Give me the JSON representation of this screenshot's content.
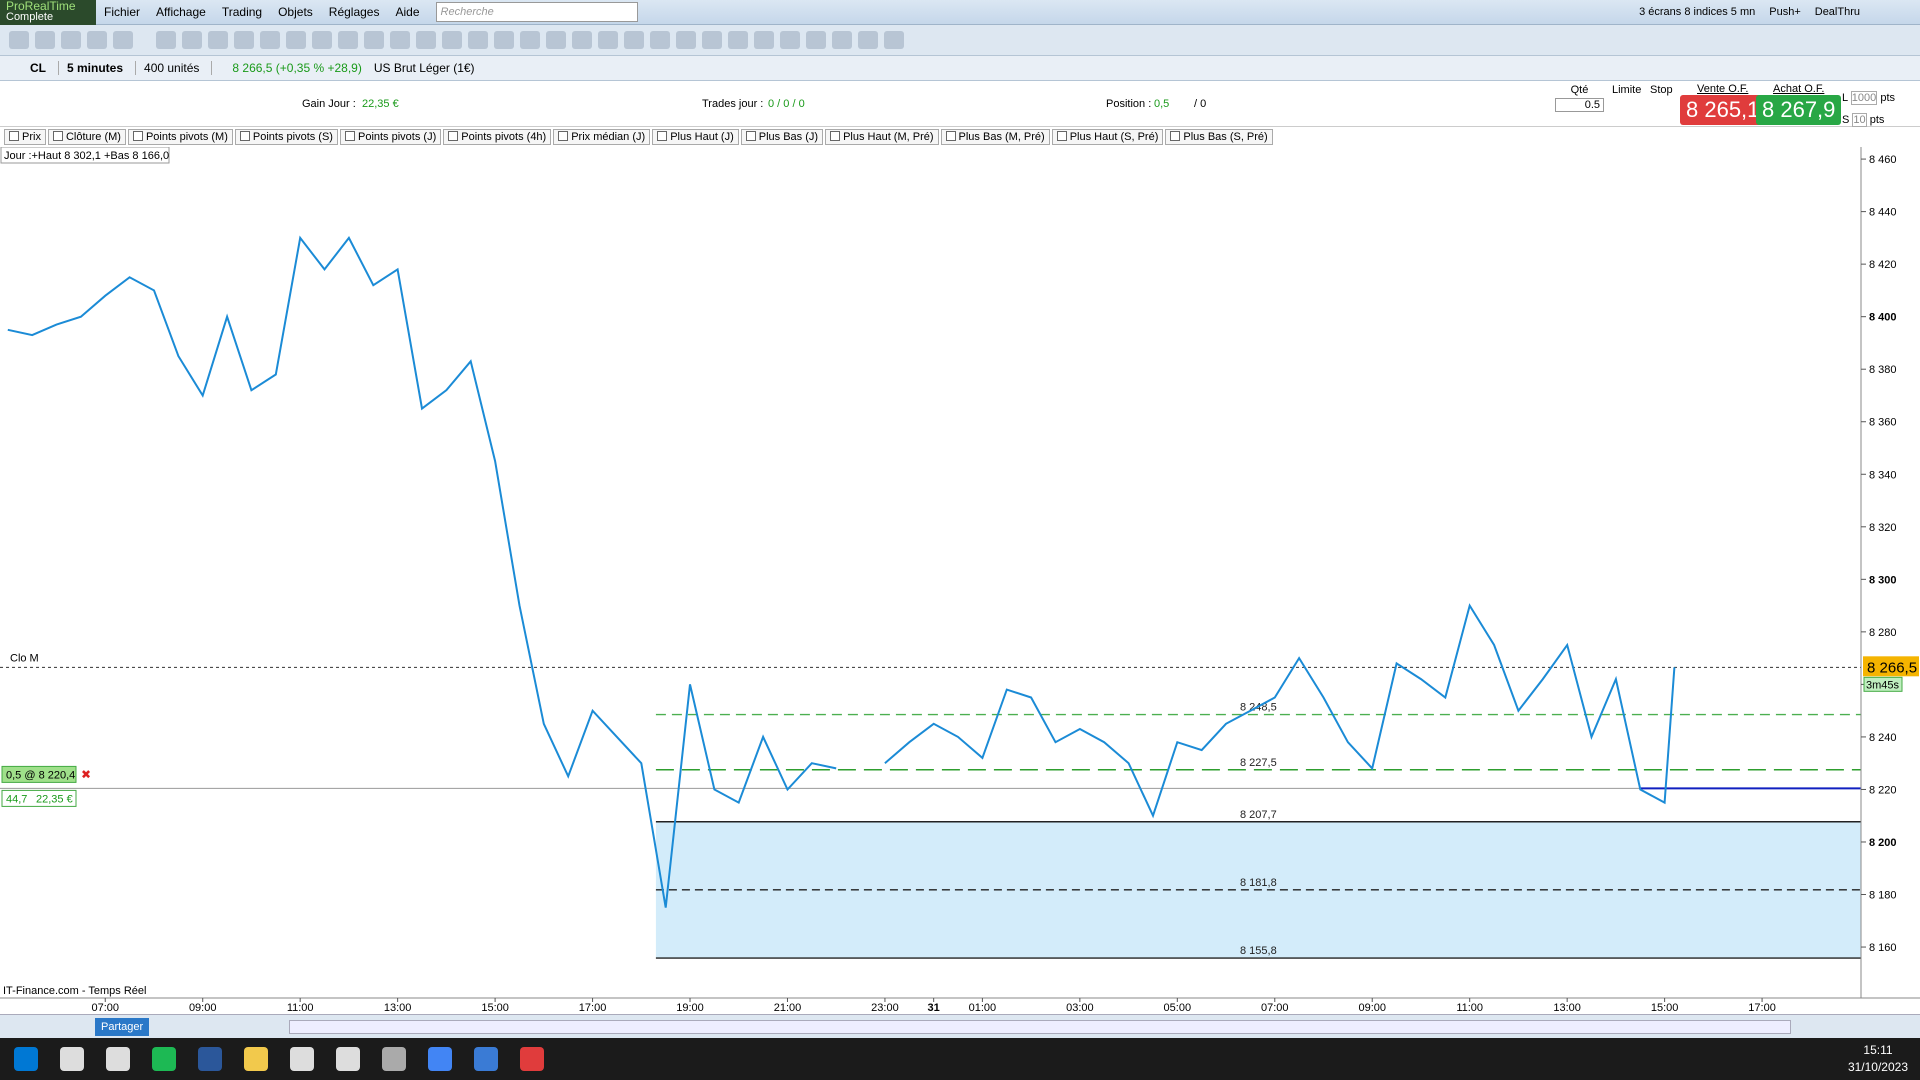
{
  "menu_bar": {
    "logo": "ProRealTime",
    "logo_sub": "Complete",
    "items": [
      "Fichier",
      "Affichage",
      "Trading",
      "Objets",
      "Réglages",
      "Aide"
    ],
    "search_placeholder": "Recherche",
    "right_items": [
      "3 écrans 8 indices 5 mn",
      "Push+",
      "DealThru"
    ]
  },
  "instrument_bar": {
    "symbol": "CL",
    "timeframe": "5 minutes",
    "units": "400 unités",
    "quote": "8 266,5 (+0,35 % +28,9)",
    "name": "US Brut Léger (1€)"
  },
  "trade_panel": {
    "gain_label": "Gain Jour :",
    "gain_value": "22,35 €",
    "trades_label": "Trades jour :",
    "trades_value": "0 / 0 / 0",
    "position_label": "Position :",
    "position_value": "0,5",
    "position_rest": "/ 0",
    "qty_label": "Qté",
    "qty_value": "0.5",
    "limit_label": "Limite",
    "stop_label": "Stop",
    "sell_label": "Vente O.F.",
    "sell_price": "8 265,1",
    "buy_label": "Achat O.F.",
    "buy_price": "8 267,9",
    "l_label": "L",
    "l_value": "1000",
    "s_label": "S",
    "s_value": "10",
    "unit": "pts"
  },
  "indicator_tabs": [
    "Prix",
    "Clôture (M)",
    "Points pivots (M)",
    "Points pivots (S)",
    "Points pivots (J)",
    "Points pivots (4h)",
    "Prix médian (J)",
    "Plus Haut (J)",
    "Plus Bas (J)",
    "Plus Haut (M, Pré)",
    "Plus Bas (M, Pré)",
    "Plus Haut (S, Pré)",
    "Plus Bas (S, Pré)"
  ],
  "chart_data": {
    "type": "line",
    "day_info": "Jour :+Haut 8 302,1 +Bas 8 166,0",
    "source": "IT-Finance.com - Temps Réel",
    "color": "#1b8bd6",
    "x": [
      5,
      5.5,
      6,
      6.5,
      7,
      7.5,
      8,
      8.5,
      9,
      9.5,
      10,
      10.5,
      11,
      11.5,
      12,
      12.5,
      13,
      13.5,
      14,
      14.5,
      15,
      15.5,
      16,
      16.5,
      17,
      17.5,
      18,
      18.5,
      19,
      19.5,
      20,
      20.5,
      21,
      21.5,
      22,
      22.5,
      23,
      23.5,
      24,
      24.5,
      25,
      25.5,
      26,
      26.5,
      27,
      27.5,
      28,
      28.5,
      29,
      29.5,
      30,
      30.5,
      31,
      31.5,
      32,
      32.5,
      33,
      33.5,
      34,
      34.5,
      35,
      35.5,
      36,
      36.5,
      37,
      37.5,
      38,
      38.5,
      39,
      39.2
    ],
    "values": [
      8395,
      8393,
      8397,
      8400,
      8408,
      8415,
      8410,
      8385,
      8370,
      8400,
      8372,
      8378,
      8430,
      8418,
      8430,
      8412,
      8418,
      8365,
      8372,
      8383,
      8345,
      8290,
      8245,
      8225,
      8250,
      8240,
      8230,
      8175,
      8260,
      8220,
      8215,
      8240,
      8220,
      8230,
      8228,
      null,
      8230,
      8238,
      8245,
      8240,
      8232,
      8258,
      8255,
      8238,
      8243,
      8238,
      8230,
      8210,
      8238,
      8235,
      8245,
      8250,
      8255,
      8270,
      8255,
      8238,
      8228,
      8268,
      8262,
      8255,
      8290,
      8275,
      8250,
      8262,
      8275,
      8240,
      8262,
      8220,
      8215,
      8266.5
    ],
    "xlim": [
      4.84,
      43.03
    ],
    "xticks": [
      {
        "value": 7,
        "label": "07:00"
      },
      {
        "value": 9,
        "label": "09:00"
      },
      {
        "value": 11,
        "label": "11:00"
      },
      {
        "value": 13,
        "label": "13:00"
      },
      {
        "value": 15,
        "label": "15:00"
      },
      {
        "value": 17,
        "label": "17:00"
      },
      {
        "value": 19,
        "label": "19:00"
      },
      {
        "value": 21,
        "label": "21:00"
      },
      {
        "value": 23,
        "label": "23:00"
      },
      {
        "value": 24,
        "label": "31"
      },
      {
        "value": 25,
        "label": "01:00"
      },
      {
        "value": 27,
        "label": "03:00"
      },
      {
        "value": 29,
        "label": "05:00"
      },
      {
        "value": 31,
        "label": "07:00"
      },
      {
        "value": 33,
        "label": "09:00"
      },
      {
        "value": 35,
        "label": "11:00"
      },
      {
        "value": 37,
        "label": "13:00"
      },
      {
        "value": 39,
        "label": "15:00"
      },
      {
        "value": 41,
        "label": "17:00"
      }
    ],
    "ylim": [
      8140.6,
      8464.6
    ],
    "yticks": [
      {
        "value": 8160,
        "label": "8 160"
      },
      {
        "value": 8180,
        "label": "8 180"
      },
      {
        "value": 8200,
        "label": "8 200"
      },
      {
        "value": 8220,
        "label": "8 220"
      },
      {
        "value": 8240,
        "label": "8 240"
      },
      {
        "value": 8260,
        "label": "8 260"
      },
      {
        "value": 8280,
        "label": "8 280"
      },
      {
        "value": 8300,
        "label": "8 300"
      },
      {
        "value": 8320,
        "label": "8 320"
      },
      {
        "value": 8340,
        "label": "8 340"
      },
      {
        "value": 8360,
        "label": "8 360"
      },
      {
        "value": 8380,
        "label": "8 380"
      },
      {
        "value": 8400,
        "label": "8 400"
      },
      {
        "value": 8420,
        "label": "8 420"
      },
      {
        "value": 8440,
        "label": "8 440"
      },
      {
        "value": 8460,
        "label": "8 460"
      }
    ],
    "levels": [
      {
        "value": 8248.5,
        "label": "8 248,5",
        "color": "#4caf50",
        "dash": "10 6"
      },
      {
        "value": 8227.5,
        "label": "8 227,5",
        "color": "#2e9e2e",
        "dash": "18 8"
      },
      {
        "value": 8207.7,
        "label": "8 207,7",
        "color": "#222222",
        "dash": "none"
      },
      {
        "value": 8181.8,
        "label": "8 181,8",
        "color": "#222222",
        "dash": "8 5"
      },
      {
        "value": 8155.8,
        "label": "8 155,8",
        "color": "#222222",
        "dash": "none"
      }
    ],
    "zone": {
      "x_start": 18.3,
      "color": "#d3ecfa"
    },
    "close_line": {
      "label": "Clo M",
      "value": 8266.5
    },
    "current_price": {
      "value": 8266.5,
      "label": "8 266,5",
      "countdown": "3m45s"
    },
    "position": {
      "value": 8220.4,
      "label": "0,5 @ 8 220,4",
      "points": "44,7",
      "gain": "22,35 €"
    }
  },
  "bottom_bar": {
    "share": "Partager"
  },
  "taskbar": {
    "time": "15:11",
    "date": "31/10/2023"
  }
}
